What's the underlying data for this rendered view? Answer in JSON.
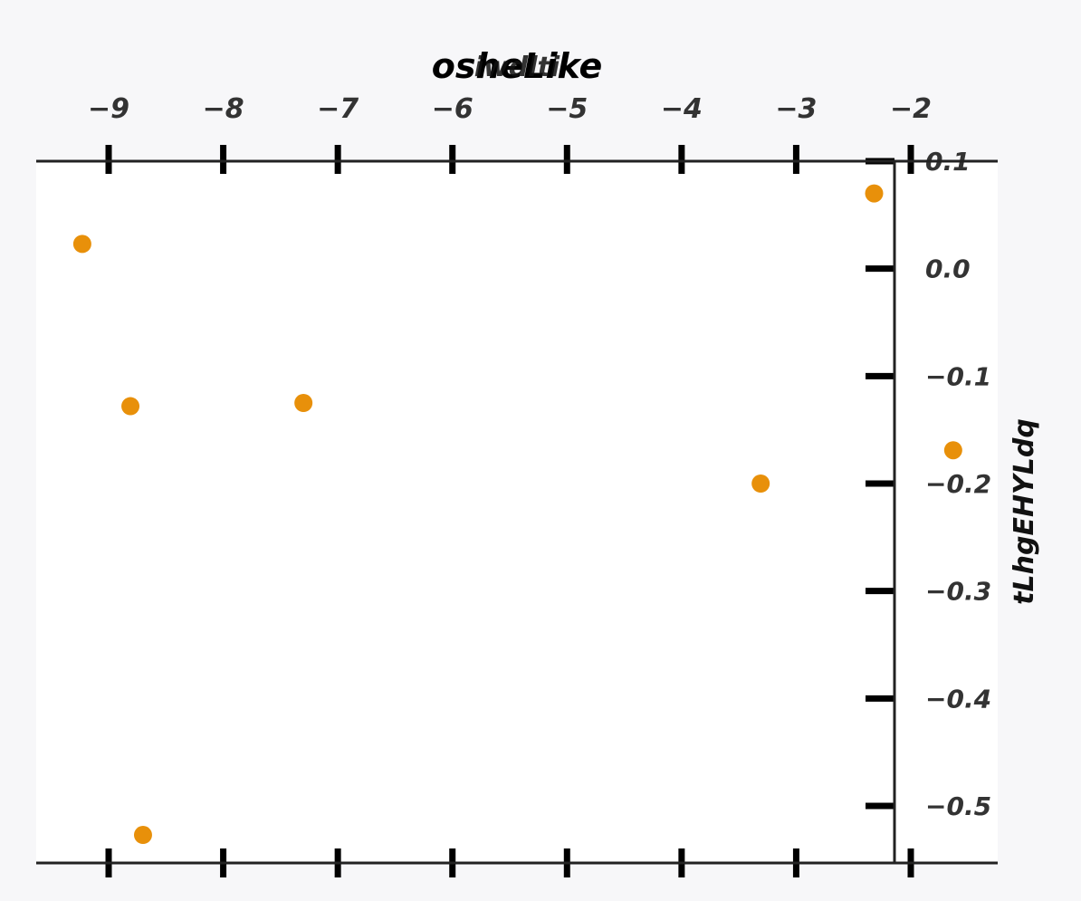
{
  "chart_data": {
    "type": "scatter",
    "title": "osheLike",
    "xlabel": "iwdlti",
    "ylabel": "tLhgEHYLdq",
    "xlim": [
      -9.6,
      -1.2
    ],
    "ylim": [
      -0.555,
      0.1
    ],
    "x_axis_position": "top",
    "y_axis_position": "right",
    "grid": false,
    "legend": "none",
    "marker_color": "#e8900a",
    "background_color": "#f7f7f9",
    "plot_background_color": "#ffffff",
    "x_ticks": [
      -9,
      -8,
      -7,
      -6,
      -5,
      -4,
      -3,
      -2
    ],
    "x_tick_labels": [
      "−9",
      "−8",
      "−7",
      "−6",
      "−5",
      "−4",
      "−3",
      "−2"
    ],
    "y_ticks": [
      0.1,
      0.0,
      -0.1,
      -0.2,
      -0.3,
      -0.4,
      -0.5
    ],
    "y_tick_labels": [
      "0.1",
      "0.0",
      "−0.1",
      "−0.2",
      "−0.3",
      "−0.4",
      "−0.5"
    ],
    "points": [
      {
        "x": -9.23,
        "y": 0.023
      },
      {
        "x": -8.81,
        "y": -0.128
      },
      {
        "x": -8.7,
        "y": -0.527
      },
      {
        "x": -7.3,
        "y": -0.125
      },
      {
        "x": -3.31,
        "y": -0.2
      },
      {
        "x": -2.32,
        "y": 0.07
      },
      {
        "x": -1.63,
        "y": -0.169
      }
    ]
  }
}
